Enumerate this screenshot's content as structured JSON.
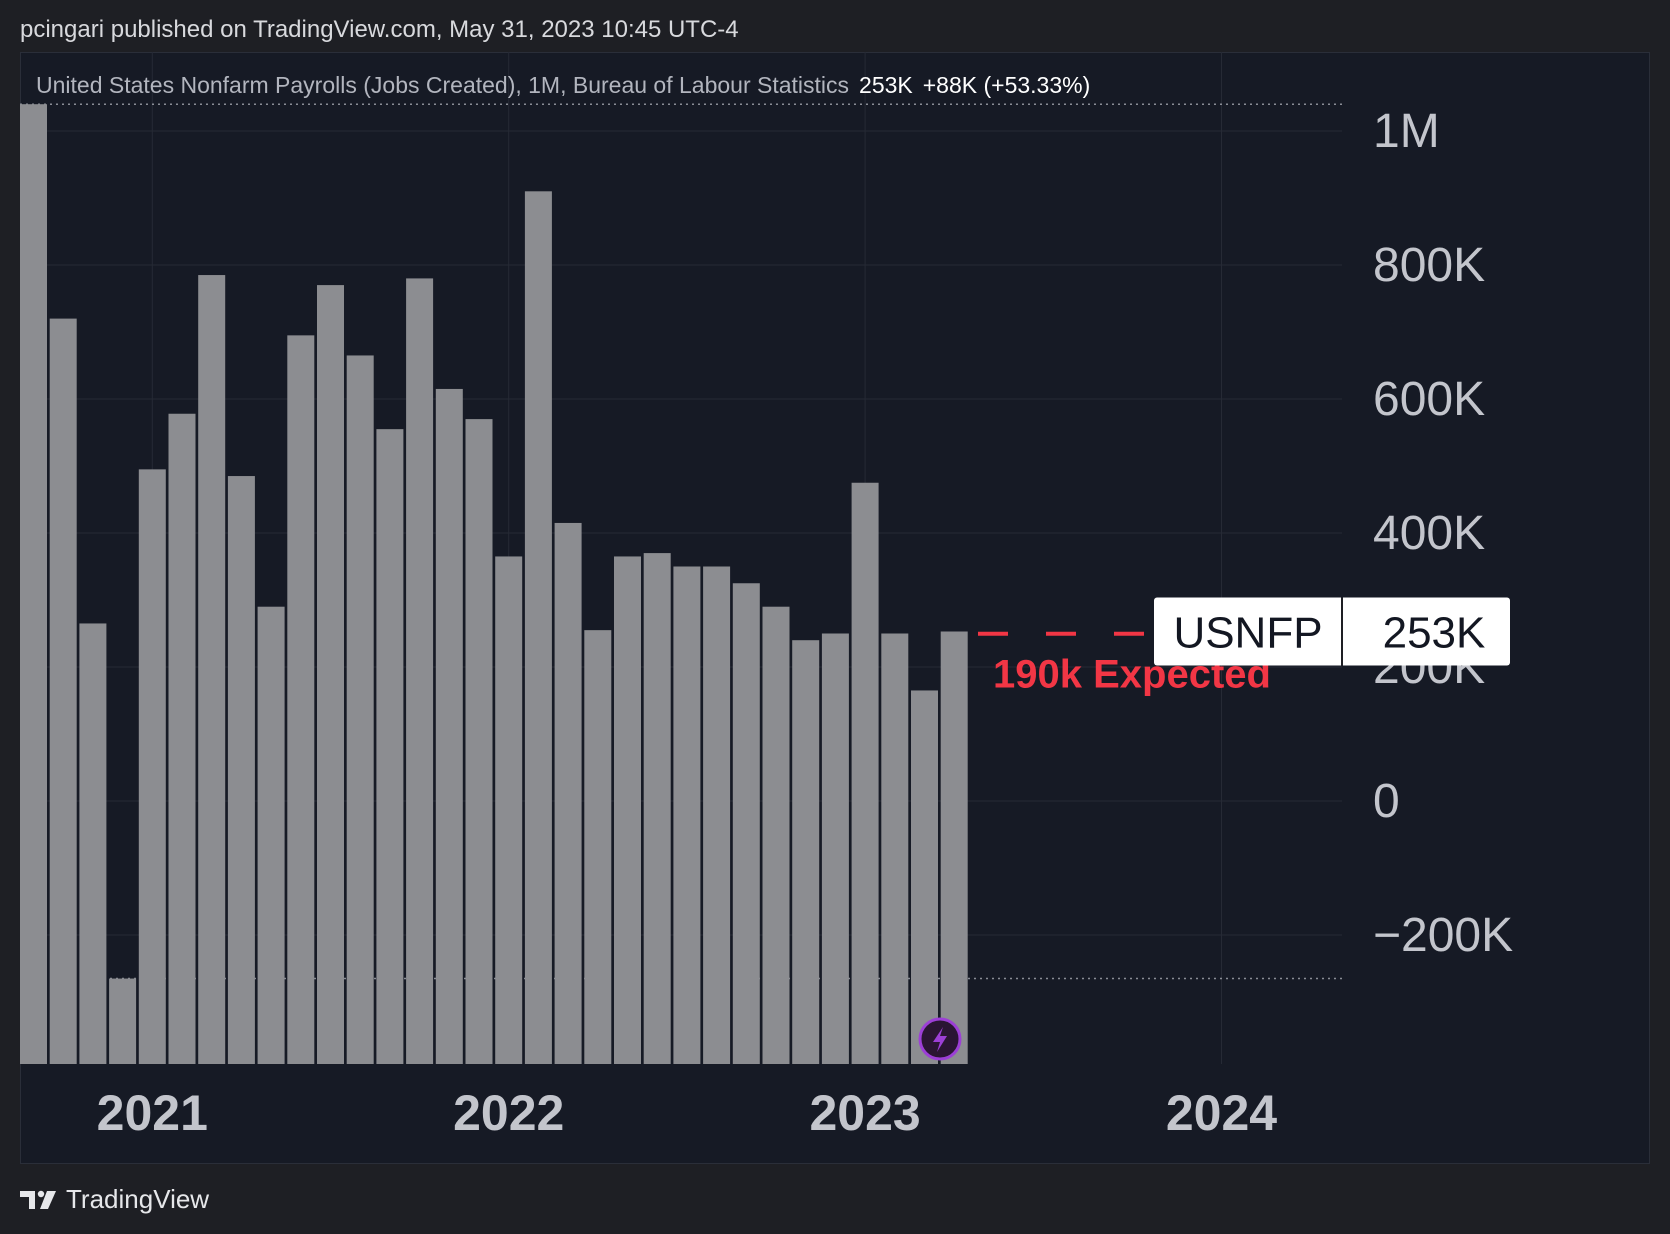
{
  "header": {
    "published": "pcingari published on TradingView.com, May 31, 2023 10:45 UTC-4"
  },
  "legend": {
    "title": "United States Nonfarm Payrolls (Jobs Created), 1M, Bureau of Labour Statistics",
    "last_value": "253K",
    "change": "+88K (+53.33%)"
  },
  "price_label": {
    "symbol": "USNFP",
    "value": "253K"
  },
  "annotation": {
    "text": "190k Expected",
    "level": 190000,
    "color": "#f23645"
  },
  "footer": {
    "brand": "TradingView"
  },
  "colors": {
    "background": "#161a25",
    "bar": "#8c8d91",
    "grid": "#262a35",
    "axis_text": "#c3c5cc",
    "event_icon": "#9c3fd6"
  },
  "chart_data": {
    "type": "bar",
    "title": "United States Nonfarm Payrolls (Jobs Created)",
    "interval": "1M",
    "source": "Bureau of Labour Statistics",
    "x": [
      "2020-09",
      "2020-10",
      "2020-11",
      "2020-12",
      "2021-01",
      "2021-02",
      "2021-03",
      "2021-04",
      "2021-05",
      "2021-06",
      "2021-07",
      "2021-08",
      "2021-09",
      "2021-10",
      "2021-11",
      "2021-12",
      "2022-01",
      "2022-02",
      "2022-03",
      "2022-04",
      "2022-05",
      "2022-06",
      "2022-07",
      "2022-08",
      "2022-09",
      "2022-10",
      "2022-11",
      "2022-12",
      "2023-01",
      "2023-02",
      "2023-03",
      "2023-04"
    ],
    "values": [
      1040000,
      720000,
      265000,
      -290000,
      495000,
      578000,
      785000,
      485000,
      290000,
      695000,
      770000,
      665000,
      555000,
      780000,
      615000,
      570000,
      365000,
      910000,
      415000,
      255000,
      365000,
      370000,
      350000,
      350000,
      325000,
      290000,
      240000,
      250000,
      475000,
      250000,
      165000,
      253000
    ],
    "x_ticks": [
      "2021",
      "2022",
      "2023",
      "2024"
    ],
    "y_ticks": [
      1000000,
      800000,
      600000,
      400000,
      200000,
      0,
      -200000
    ],
    "y_tick_labels": [
      "1M",
      "800K",
      "600K",
      "400K",
      "200K",
      "0",
      "−200K"
    ],
    "ylim": [
      -390000,
      1100000
    ],
    "reference_lines": [
      1040000,
      -265000
    ],
    "expected_line": 190000,
    "grid": true
  }
}
